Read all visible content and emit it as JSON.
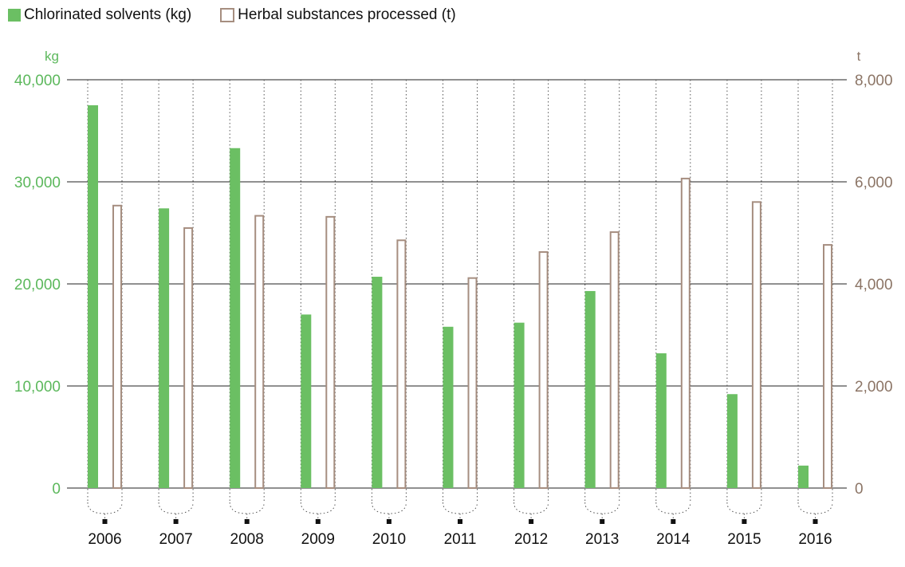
{
  "colors": {
    "solvents": "#6bbf63",
    "solvents_axis": "#5cb85c",
    "herbal": "#a68e80",
    "herbal_axis": "#8c7566",
    "grid": "#222222",
    "dotted": "#555555"
  },
  "chart_data": {
    "type": "bar",
    "categories": [
      "2006",
      "2007",
      "2008",
      "2009",
      "2010",
      "2011",
      "2012",
      "2013",
      "2014",
      "2015",
      "2016"
    ],
    "series": [
      {
        "name": "Chlorinated solvents (kg)",
        "axis": "left",
        "values": [
          37500,
          27400,
          33300,
          17000,
          20700,
          15800,
          16200,
          19300,
          13200,
          9200,
          2200
        ]
      },
      {
        "name": "Herbal substances processed (t)",
        "axis": "right",
        "values": [
          5550,
          5110,
          5350,
          5330,
          4870,
          4130,
          4640,
          5030,
          6080,
          5620,
          4780
        ]
      }
    ],
    "left_axis": {
      "unit": "kg",
      "ylim": [
        0,
        40000
      ],
      "ticks": [
        "0",
        "10,000",
        "20,000",
        "30,000",
        "40,000"
      ]
    },
    "right_axis": {
      "unit": "t",
      "ylim": [
        0,
        8000
      ],
      "ticks": [
        "0",
        "2,000",
        "4,000",
        "6,000",
        "8,000"
      ]
    },
    "grid": true,
    "legend": "top-left"
  }
}
